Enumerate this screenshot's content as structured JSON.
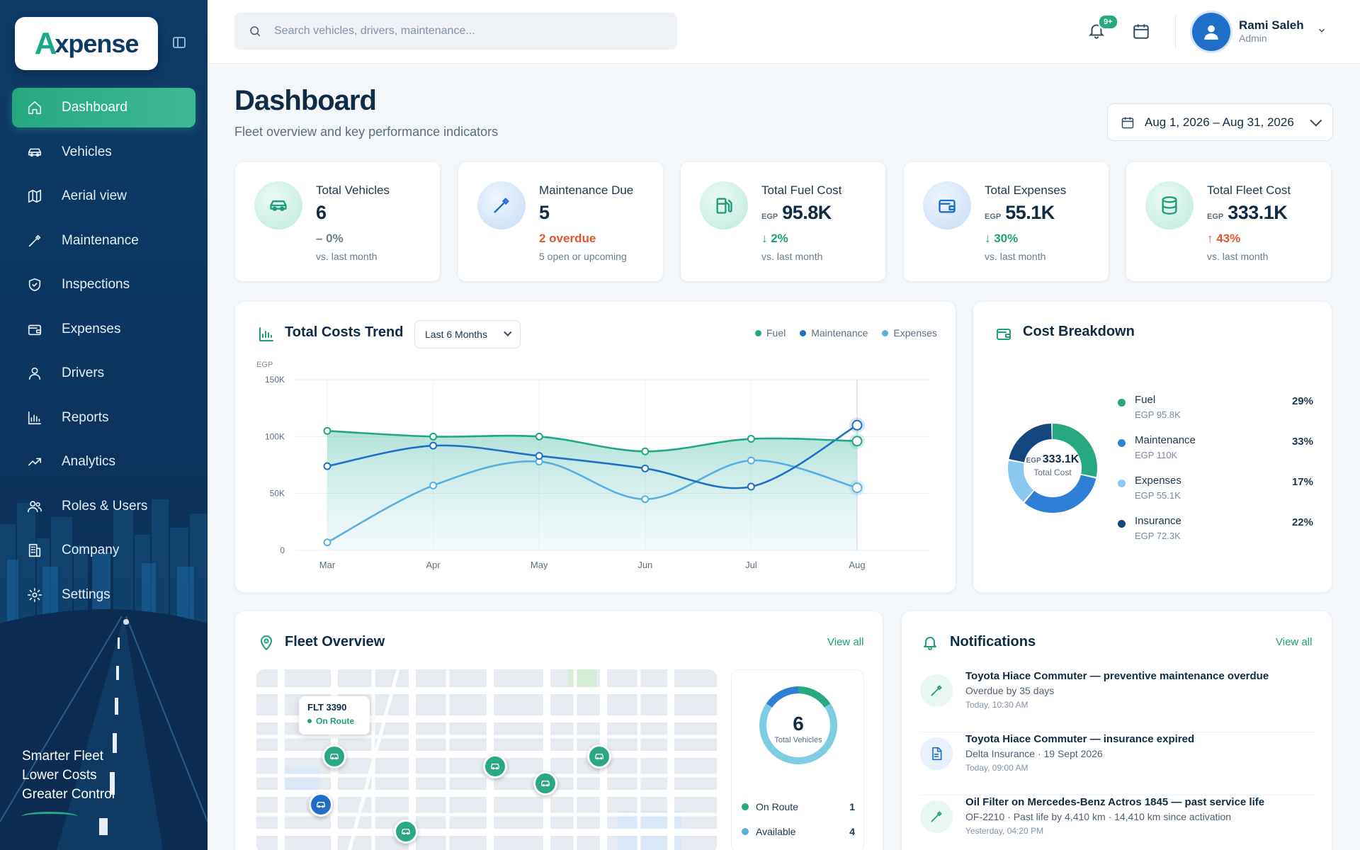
{
  "brand": {
    "logo_mark": "A",
    "logo_text": "xpense"
  },
  "sidebar": {
    "items": [
      {
        "label": "Dashboard",
        "icon": "home-icon",
        "active": true
      },
      {
        "label": "Vehicles",
        "icon": "car-icon"
      },
      {
        "label": "Aerial view",
        "icon": "map-icon"
      },
      {
        "label": "Maintenance",
        "icon": "wrench-icon"
      },
      {
        "label": "Inspections",
        "icon": "shield-check-icon"
      },
      {
        "label": "Expenses",
        "icon": "wallet-icon"
      },
      {
        "label": "Drivers",
        "icon": "user-icon"
      },
      {
        "label": "Reports",
        "icon": "bar-chart-icon"
      },
      {
        "label": "Analytics",
        "icon": "trend-up-icon"
      },
      {
        "label": "Roles & Users",
        "icon": "users-icon"
      },
      {
        "label": "Company",
        "icon": "building-icon"
      },
      {
        "label": "Settings",
        "icon": "gear-icon"
      }
    ],
    "tagline": [
      "Smarter Fleet",
      "Lower Costs",
      "Greater Control"
    ]
  },
  "topbar": {
    "search_placeholder": "Search vehicles, drivers, maintenance...",
    "notification_badge": "9+",
    "user": {
      "name": "Rami Saleh",
      "role": "Admin"
    }
  },
  "header": {
    "title": "Dashboard",
    "subtitle": "Fleet overview and key performance indicators",
    "date_range": "Aug 1, 2026 – Aug 31, 2026"
  },
  "kpis": [
    {
      "label": "Total Vehicles",
      "currency": "",
      "value": "6",
      "delta": "– 0%",
      "delta_type": "neutral",
      "note": "vs. last month",
      "icon": "car-icon",
      "tone": "green"
    },
    {
      "label": "Maintenance Due",
      "currency": "",
      "value": "5",
      "delta": "2  overdue",
      "delta_type": "bad",
      "note": "5 open or upcoming",
      "icon": "wrench-icon",
      "tone": "blue"
    },
    {
      "label": "Total Fuel Cost",
      "currency": "EGP",
      "value": "95.8K",
      "delta": "↓ 2%",
      "delta_type": "good",
      "note": "vs. last month",
      "icon": "fuel-pump-icon",
      "tone": "green"
    },
    {
      "label": "Total Expenses",
      "currency": "EGP",
      "value": "55.1K",
      "delta": "↓ 30%",
      "delta_type": "good",
      "note": "vs. last month",
      "icon": "wallet-icon",
      "tone": "blue"
    },
    {
      "label": "Total Fleet Cost",
      "currency": "EGP",
      "value": "333.1K",
      "delta": "↑ 43%",
      "delta_type": "bad",
      "note": "vs. last month",
      "icon": "database-icon",
      "tone": "green"
    }
  ],
  "trend": {
    "title": "Total Costs Trend",
    "range": "Last 6 Months",
    "legend": [
      "Fuel",
      "Maintenance",
      "Expenses"
    ]
  },
  "chart_data": {
    "type": "line",
    "x": [
      "Mar",
      "Apr",
      "May",
      "Jun",
      "Jul",
      "Aug"
    ],
    "ylabel": "EGP",
    "ylim": [
      0,
      150000
    ],
    "yticks": [
      "0",
      "50K",
      "100K",
      "150K"
    ],
    "series": [
      {
        "name": "Fuel",
        "color": "#1fa883",
        "values": [
          105000,
          100000,
          100000,
          87000,
          98000,
          96000
        ]
      },
      {
        "name": "Maintenance",
        "color": "#1f6fc9",
        "values": [
          74000,
          92000,
          83000,
          72000,
          56000,
          110000
        ]
      },
      {
        "name": "Expenses",
        "color": "#5aaee0",
        "values": [
          7000,
          57000,
          78000,
          45000,
          79000,
          55000
        ]
      }
    ]
  },
  "breakdown": {
    "title": "Cost Breakdown",
    "center_currency": "EGP",
    "center_value": "333.1K",
    "center_label": "Total Cost",
    "items": [
      {
        "name": "Fuel",
        "value": "EGP 95.8K",
        "pct": "29%",
        "share": 29,
        "color": "#27a880"
      },
      {
        "name": "Maintenance",
        "value": "EGP 110K",
        "pct": "33%",
        "share": 33,
        "color": "#2f7fd6"
      },
      {
        "name": "Expenses",
        "value": "EGP 55.1K",
        "pct": "17%",
        "share": 17,
        "color": "#8cc7f0"
      },
      {
        "name": "Insurance",
        "value": "EGP 72.3K",
        "pct": "22%",
        "share": 22,
        "color": "#14477e"
      }
    ]
  },
  "fleet": {
    "title": "Fleet Overview",
    "view_all": "View all",
    "popup_title": "FLT 3390",
    "popup_status": "On Route",
    "total": "6",
    "total_label": "Total Vehicles",
    "stats": [
      {
        "label": "On Route",
        "count": "1",
        "color": "#27a880"
      },
      {
        "label": "Available",
        "count": "4",
        "color": "#5aaee0"
      }
    ]
  },
  "notifications": {
    "title": "Notifications",
    "view_all": "View all",
    "items": [
      {
        "title": "Toyota Hiace Commuter — preventive maintenance overdue",
        "detail": "Overdue by 35 days",
        "time": "Today, 10:30 AM",
        "icon": "wrench-icon",
        "tone": "g"
      },
      {
        "title": "Toyota Hiace Commuter — insurance expired",
        "detail": "Delta Insurance · 19 Sept 2026",
        "time": "Today, 09:00 AM",
        "icon": "document-icon",
        "tone": "b"
      },
      {
        "title": "Oil Filter on Mercedes-Benz Actros 1845 — past service life",
        "detail": "OF-2210 · Past life by 4,410 km · 14,410 km since activation",
        "time": "Yesterday, 04:20 PM",
        "icon": "wrench-icon",
        "tone": "g"
      }
    ]
  }
}
